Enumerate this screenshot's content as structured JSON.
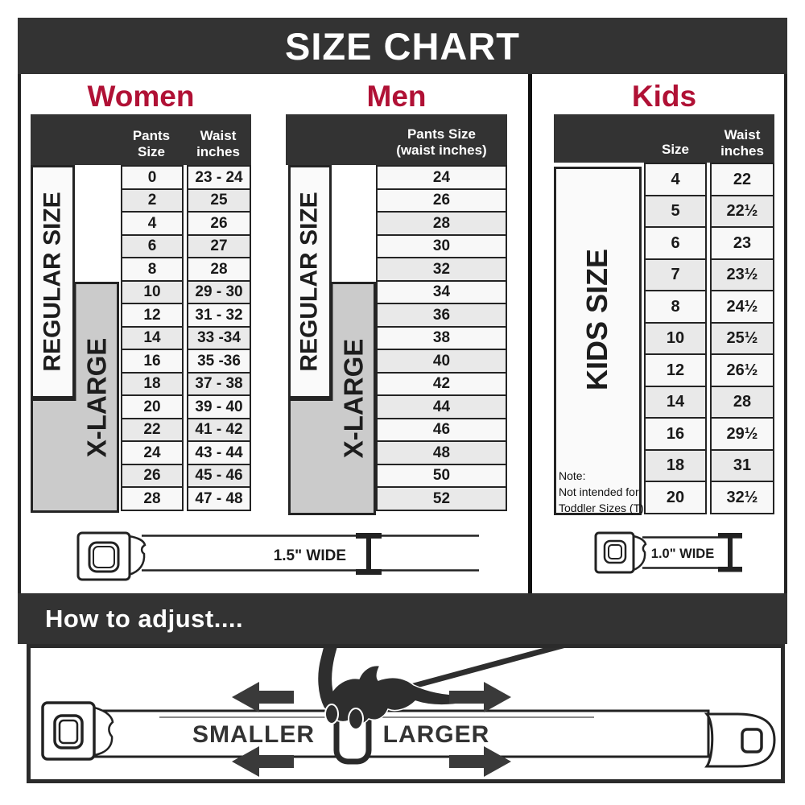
{
  "title": "SIZE CHART",
  "colors": {
    "dark_band": "#333333",
    "accent_red": "#B01135",
    "table_border": "#242424",
    "row_light": "#f8f8f8",
    "row_shaded": "#e9e9e9",
    "xlarge_gray": "#cbcbcb"
  },
  "sections": {
    "women": {
      "title": "Women",
      "col1_header": "Pants Size",
      "col2_header": "Waist\ninches",
      "regular_label": "REGULAR SIZE",
      "xlarge_label": "X-LARGE",
      "rows": [
        [
          "0",
          "23 - 24"
        ],
        [
          "2",
          "25"
        ],
        [
          "4",
          "26"
        ],
        [
          "6",
          "27"
        ],
        [
          "8",
          "28"
        ],
        [
          "10",
          "29 - 30"
        ],
        [
          "12",
          "31 - 32"
        ],
        [
          "14",
          "33 -34"
        ],
        [
          "16",
          "35 -36"
        ],
        [
          "18",
          "37 - 38"
        ],
        [
          "20",
          "39 - 40"
        ],
        [
          "22",
          "41 - 42"
        ],
        [
          "24",
          "43 - 44"
        ],
        [
          "26",
          "45 - 46"
        ],
        [
          "28",
          "47 - 48"
        ]
      ],
      "belt_width_label": "1.5\" WIDE"
    },
    "men": {
      "title": "Men",
      "col_header": "Pants Size\n(waist inches)",
      "regular_label": "REGULAR SIZE",
      "xlarge_label": "X-LARGE",
      "rows": [
        "24",
        "26",
        "28",
        "30",
        "32",
        "34",
        "36",
        "38",
        "40",
        "42",
        "44",
        "46",
        "48",
        "50",
        "52"
      ]
    },
    "kids": {
      "title": "Kids",
      "col1_header": "Size",
      "col2_header": "Waist\ninches",
      "label": "KIDS SIZE",
      "note_line1": "Note:",
      "note_line2": "Not intended for",
      "note_line3": "Toddler Sizes (T)",
      "rows": [
        [
          "4",
          "22"
        ],
        [
          "5",
          "22½"
        ],
        [
          "6",
          "23"
        ],
        [
          "7",
          "23½"
        ],
        [
          "8",
          "24½"
        ],
        [
          "10",
          "25½"
        ],
        [
          "12",
          "26½"
        ],
        [
          "14",
          "28"
        ],
        [
          "16",
          "29½"
        ],
        [
          "18",
          "31"
        ],
        [
          "20",
          "32½"
        ]
      ],
      "belt_width_label": "1.0\" WIDE"
    }
  },
  "adjust": {
    "heading": "How to adjust....",
    "smaller_label": "SMALLER",
    "larger_label": "LARGER"
  }
}
